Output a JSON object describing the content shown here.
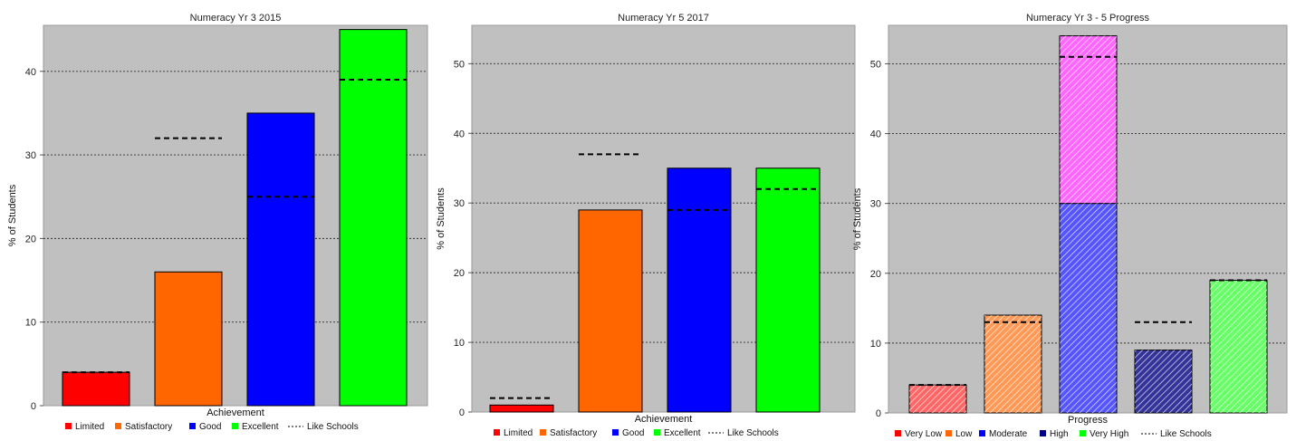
{
  "chart_data": [
    {
      "type": "bar",
      "title": "Numeracy Yr 3 2015",
      "xlabel": "Achievement",
      "ylabel": "% of Students",
      "ylim": [
        0,
        45.5
      ],
      "yticks": [
        0,
        10,
        20,
        30,
        40
      ],
      "grid": true,
      "legend_position": "bottom",
      "categories": [
        "Limited",
        "Satisfactory",
        "Good",
        "Excellent"
      ],
      "series": [
        {
          "values": [
            4,
            16,
            35,
            45
          ],
          "colors": [
            "#ff0000",
            "#ff6600",
            "#0000ff",
            "#00ff00"
          ]
        },
        {
          "name": "Like Schools",
          "style": "dashed",
          "values": [
            4,
            32,
            25,
            39
          ]
        }
      ],
      "legend": [
        "Limited",
        "Satisfactory",
        "Good",
        "Excellent",
        "Like Schools"
      ],
      "legend_colors": [
        "#ff0000",
        "#ff6600",
        "#0000ff",
        "#00ff00",
        "#000000"
      ],
      "hatched": false
    },
    {
      "type": "bar",
      "title": "Numeracy Yr 5 2017",
      "xlabel": "Achievement",
      "ylabel": "% of Students",
      "ylim": [
        0,
        55.5
      ],
      "yticks": [
        0,
        10,
        20,
        30,
        40,
        50
      ],
      "grid": true,
      "legend_position": "bottom",
      "categories": [
        "Limited",
        "Satisfactory",
        "Good",
        "Excellent"
      ],
      "series": [
        {
          "values": [
            1,
            29,
            35,
            35
          ],
          "colors": [
            "#ff0000",
            "#ff6600",
            "#0000ff",
            "#00ff00"
          ]
        },
        {
          "name": "Like Schools",
          "style": "dashed",
          "values": [
            2,
            37,
            29,
            32
          ]
        }
      ],
      "legend": [
        "Limited",
        "Satisfactory",
        "Good",
        "Excellent",
        "Like Schools"
      ],
      "legend_colors": [
        "#ff0000",
        "#ff6600",
        "#0000ff",
        "#00ff00",
        "#000000"
      ],
      "hatched": false
    },
    {
      "type": "bar",
      "title": "Numeracy Yr 3 - 5 Progress",
      "xlabel": "Progress",
      "ylabel": "% of Students",
      "ylim": [
        0,
        55.5
      ],
      "yticks": [
        0,
        10,
        20,
        30,
        40,
        50
      ],
      "grid": true,
      "legend_position": "bottom",
      "categories": [
        "Very Low",
        "Low",
        "Moderate",
        "High",
        "Very High"
      ],
      "series": [
        {
          "values": [
            4,
            14,
            30,
            9,
            19
          ],
          "colors": [
            "#ff6666",
            "#ff9955",
            "#5555ff",
            "#333399",
            "#66ff66"
          ]
        },
        {
          "stacked_on": "Moderate",
          "values": [
            0,
            0,
            24,
            0,
            0
          ],
          "colors": [
            "#ff66ff",
            "#ff66ff",
            "#ff66ff",
            "#ff66ff",
            "#ff66ff"
          ]
        },
        {
          "name": "Like Schools",
          "style": "dashed",
          "values": [
            4,
            13,
            51,
            13,
            19
          ]
        }
      ],
      "legend": [
        "Very Low",
        "Low",
        "Moderate",
        "High",
        "Very High",
        "Like Schools"
      ],
      "legend_colors": [
        "#ff0000",
        "#ff6600",
        "#0000ff",
        "#000080",
        "#00ff00",
        "#000000"
      ],
      "hatched": true
    }
  ]
}
